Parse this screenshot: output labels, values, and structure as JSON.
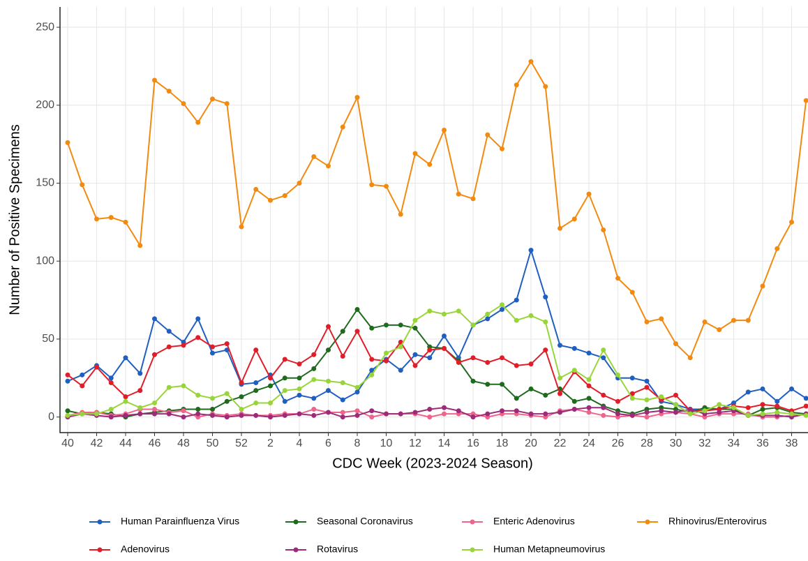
{
  "chart_data": {
    "type": "line",
    "y_label": "Number of Positive Specimens",
    "x_label": "CDC Week (2023-2024 Season)",
    "categories": [
      "40",
      null,
      "42",
      null,
      "44",
      null,
      "46",
      null,
      "48",
      null,
      "50",
      null,
      "52",
      null,
      "2",
      null,
      "4",
      null,
      "6",
      null,
      "8",
      null,
      "10",
      null,
      "12",
      null,
      "14",
      null,
      "16",
      null,
      "18",
      null,
      "20",
      null,
      "22",
      null,
      "24",
      null,
      "26",
      null,
      "28",
      null,
      "30",
      null,
      "32",
      null,
      "34",
      null,
      "36",
      null,
      "38",
      null
    ],
    "ylim": [
      -10,
      263
    ],
    "yticks": [
      0,
      50,
      100,
      150,
      200,
      250
    ],
    "grid": true,
    "series": [
      {
        "name": "Human Parainfluenza Virus",
        "color": "#1f5fc0",
        "values": [
          23,
          27,
          33,
          25,
          38,
          28,
          63,
          55,
          48,
          63,
          41,
          43,
          21,
          22,
          27,
          10,
          14,
          12,
          17,
          11,
          16,
          30,
          37,
          30,
          40,
          38,
          52,
          38,
          59,
          63,
          69,
          75,
          107,
          77,
          46,
          44,
          41,
          38,
          25,
          25,
          23,
          10,
          8,
          5,
          5,
          5,
          9,
          16,
          18,
          10,
          18,
          12
        ]
      },
      {
        "name": "Seasonal Coronavirus",
        "color": "#1e6b1e",
        "values": [
          4,
          2,
          3,
          2,
          0,
          2,
          3,
          4,
          5,
          5,
          5,
          10,
          13,
          17,
          20,
          25,
          25,
          31,
          43,
          55,
          69,
          57,
          59,
          59,
          57,
          45,
          44,
          36,
          23,
          21,
          21,
          12,
          18,
          14,
          18,
          10,
          12,
          7,
          4,
          2,
          5,
          6,
          5,
          3,
          6,
          5,
          5,
          1,
          5,
          6,
          3,
          2
        ]
      },
      {
        "name": "Enteric Adenovirus",
        "color": "#f0648c",
        "values": [
          1,
          3,
          3,
          1,
          2,
          5,
          5,
          3,
          4,
          0,
          2,
          1,
          2,
          1,
          1,
          2,
          2,
          5,
          3,
          3,
          4,
          0,
          2,
          2,
          2,
          0,
          2,
          2,
          2,
          0,
          2,
          2,
          1,
          0,
          4,
          5,
          3,
          1,
          0,
          1,
          0,
          2,
          3,
          2,
          0,
          2,
          2,
          2,
          0,
          0,
          1,
          2
        ]
      },
      {
        "name": "Rhinovirus/Enterovirus",
        "color": "#f28a10",
        "values": [
          176,
          149,
          127,
          128,
          125,
          110,
          216,
          209,
          201,
          189,
          204,
          201,
          122,
          146,
          139,
          142,
          150,
          167,
          161,
          186,
          205,
          149,
          148,
          130,
          169,
          162,
          184,
          143,
          140,
          181,
          172,
          213,
          228,
          212,
          121,
          127,
          143,
          120,
          89,
          80,
          61,
          63,
          47,
          38,
          61,
          56,
          62,
          62,
          84,
          108,
          125,
          203
        ]
      },
      {
        "name": "Adenovirus",
        "color": "#e01e2a",
        "values": [
          27,
          20,
          32,
          22,
          13,
          17,
          40,
          45,
          46,
          51,
          45,
          47,
          22,
          43,
          25,
          37,
          34,
          40,
          58,
          39,
          55,
          37,
          36,
          48,
          33,
          43,
          44,
          35,
          38,
          35,
          38,
          33,
          34,
          43,
          15,
          29,
          20,
          14,
          10,
          15,
          19,
          11,
          14,
          4,
          4,
          5,
          7,
          6,
          8,
          7,
          4,
          7
        ]
      },
      {
        "name": "Rotavirus",
        "color": "#9e2a7a",
        "values": [
          0,
          2,
          1,
          0,
          1,
          2,
          2,
          2,
          0,
          2,
          1,
          0,
          1,
          1,
          0,
          1,
          2,
          1,
          3,
          0,
          1,
          4,
          2,
          2,
          3,
          5,
          6,
          4,
          0,
          2,
          4,
          4,
          2,
          2,
          3,
          5,
          6,
          6,
          2,
          1,
          3,
          4,
          3,
          5,
          2,
          3,
          4,
          1,
          1,
          1,
          0,
          2
        ]
      },
      {
        "name": "Human Metapneumovirus",
        "color": "#99d53a",
        "values": [
          1,
          2,
          2,
          5,
          10,
          6,
          9,
          19,
          20,
          14,
          12,
          15,
          5,
          9,
          9,
          17,
          18,
          24,
          23,
          22,
          19,
          27,
          41,
          45,
          62,
          68,
          66,
          68,
          59,
          66,
          72,
          62,
          65,
          61,
          25,
          30,
          24,
          43,
          27,
          12,
          11,
          13,
          8,
          2,
          4,
          8,
          6,
          1,
          2,
          3,
          2,
          1
        ]
      }
    ]
  }
}
